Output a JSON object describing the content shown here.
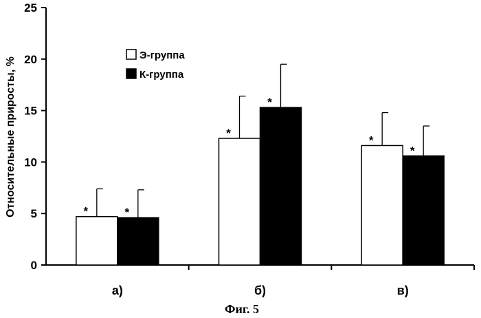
{
  "chart_data": {
    "type": "bar",
    "ylabel": "Относительные приросты, %",
    "xlabel": "",
    "ylim": [
      0,
      25
    ],
    "yticks": [
      0,
      5,
      10,
      15,
      20,
      25
    ],
    "categories": [
      "а)",
      "б)",
      "в)"
    ],
    "legend_position": "top-left",
    "series": [
      {
        "name": "Э-группа",
        "fill": "#ffffff",
        "values": [
          4.7,
          12.3,
          11.6
        ],
        "errors": [
          2.7,
          4.1,
          3.2
        ],
        "marker": "*"
      },
      {
        "name": "К-группа",
        "fill": "#000000",
        "values": [
          4.6,
          15.3,
          10.6
        ],
        "errors": [
          2.7,
          4.2,
          2.9
        ],
        "marker": "*"
      }
    ],
    "caption": "Фиг. 5"
  }
}
